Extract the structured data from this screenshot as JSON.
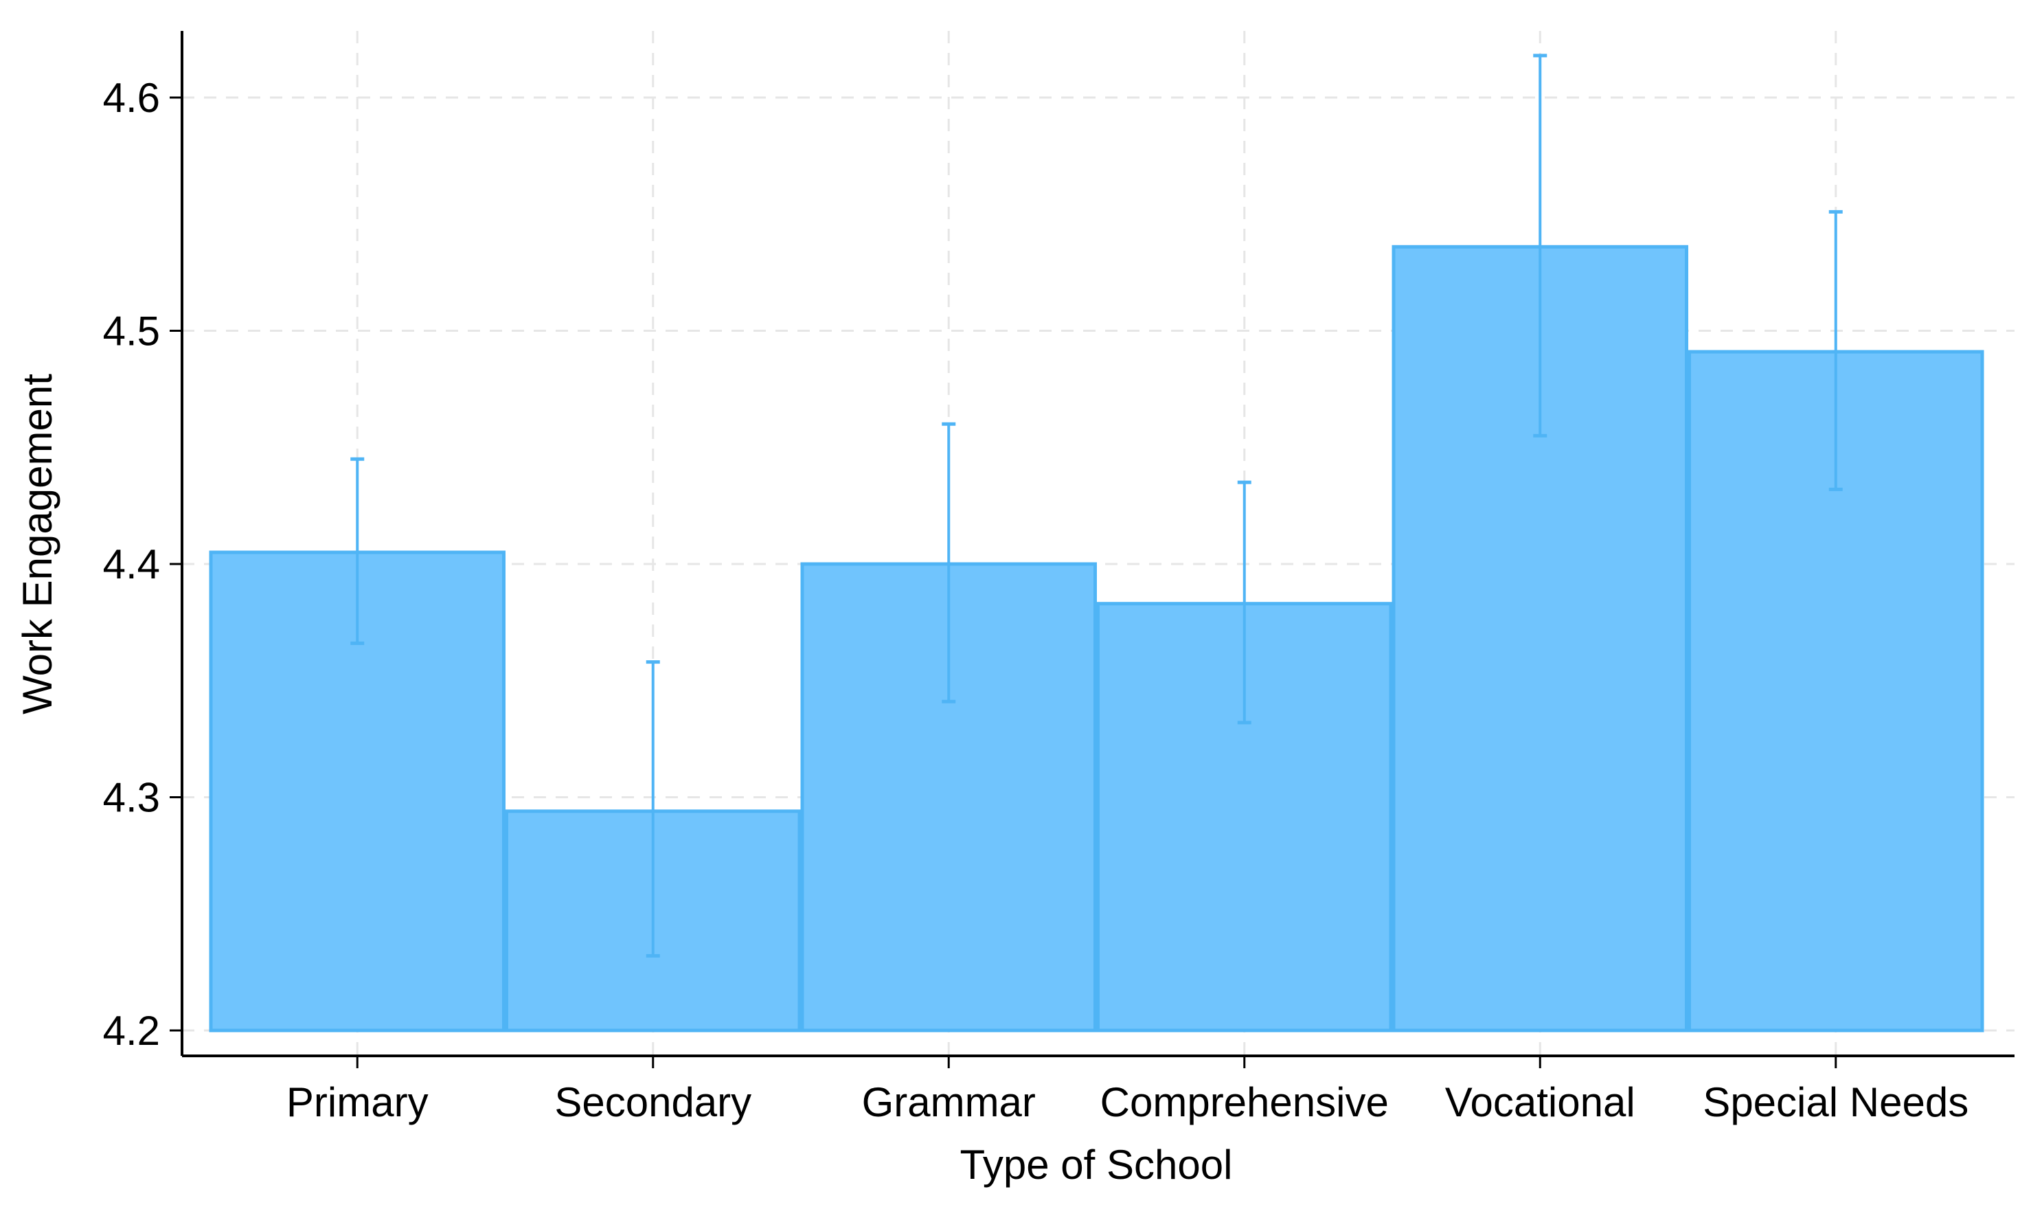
{
  "chart_data": {
    "type": "bar",
    "title": "",
    "xlabel": "Type of School",
    "ylabel": "Work Engagement",
    "categories": [
      "Primary",
      "Secondary",
      "Grammar",
      "Comprehensive",
      "Vocational",
      "Special Needs"
    ],
    "values": [
      4.405,
      4.294,
      4.4,
      4.383,
      4.536,
      4.491
    ],
    "error_low": [
      4.366,
      4.232,
      4.341,
      4.332,
      4.455,
      4.432
    ],
    "error_high": [
      4.445,
      4.358,
      4.46,
      4.435,
      4.618,
      4.551
    ],
    "ylim": [
      4.2,
      4.63
    ],
    "yticks": [
      "4.2",
      "4.3",
      "4.4",
      "4.5",
      "4.6"
    ],
    "grid": true,
    "bar_color": "#70c4fd",
    "bar_edge_color": "#4fb4f5",
    "error_color": "#4fb4f5",
    "grid_color": "#e6e6e6",
    "axis_color": "#000000"
  }
}
